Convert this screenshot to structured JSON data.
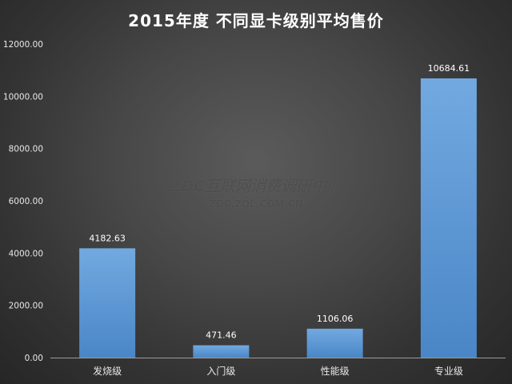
{
  "chart_data": {
    "type": "bar",
    "title": "2015年度 不同显卡级别平均售价",
    "categories": [
      "发烧级",
      "入门级",
      "性能级",
      "专业级"
    ],
    "values": [
      4182.63,
      471.46,
      1106.06,
      10684.61
    ],
    "value_labels": [
      "4182.63",
      "471.46",
      "1106.06",
      "10684.61"
    ],
    "y_ticks": [
      "0.00",
      "2000.00",
      "4000.00",
      "6000.00",
      "8000.00",
      "10000.00",
      "12000.00"
    ],
    "ylim": [
      0,
      12000
    ],
    "xlabel": "",
    "ylabel": "",
    "grid": false,
    "bar_color": "#5b9bd5"
  },
  "watermark": {
    "main": "ZDC互联网消费调研中心",
    "sub": "ZDC.ZOL.COM.CN"
  }
}
